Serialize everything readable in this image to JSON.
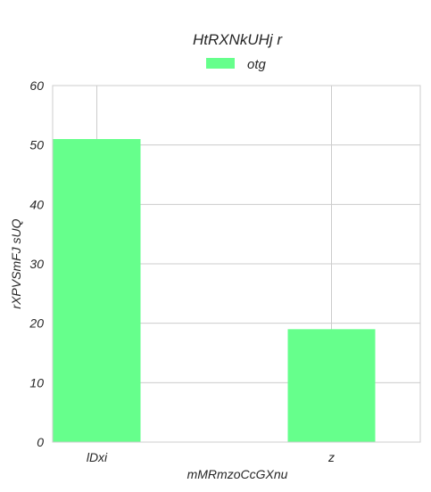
{
  "chart_data": {
    "type": "bar",
    "title": "HtRXNkUHj  r",
    "xlabel": "mMRmzoCcGXnu",
    "ylabel": "rXPVSmFJ  sUQ",
    "categories": [
      "lDxi",
      "z"
    ],
    "series": [
      {
        "name": "otg",
        "values": [
          51,
          19
        ],
        "color": "#66ff8c"
      }
    ],
    "ylim": [
      0,
      60
    ],
    "yticks": [
      0,
      10,
      20,
      30,
      40,
      50,
      60
    ],
    "grid": true,
    "legend": "top-center"
  }
}
